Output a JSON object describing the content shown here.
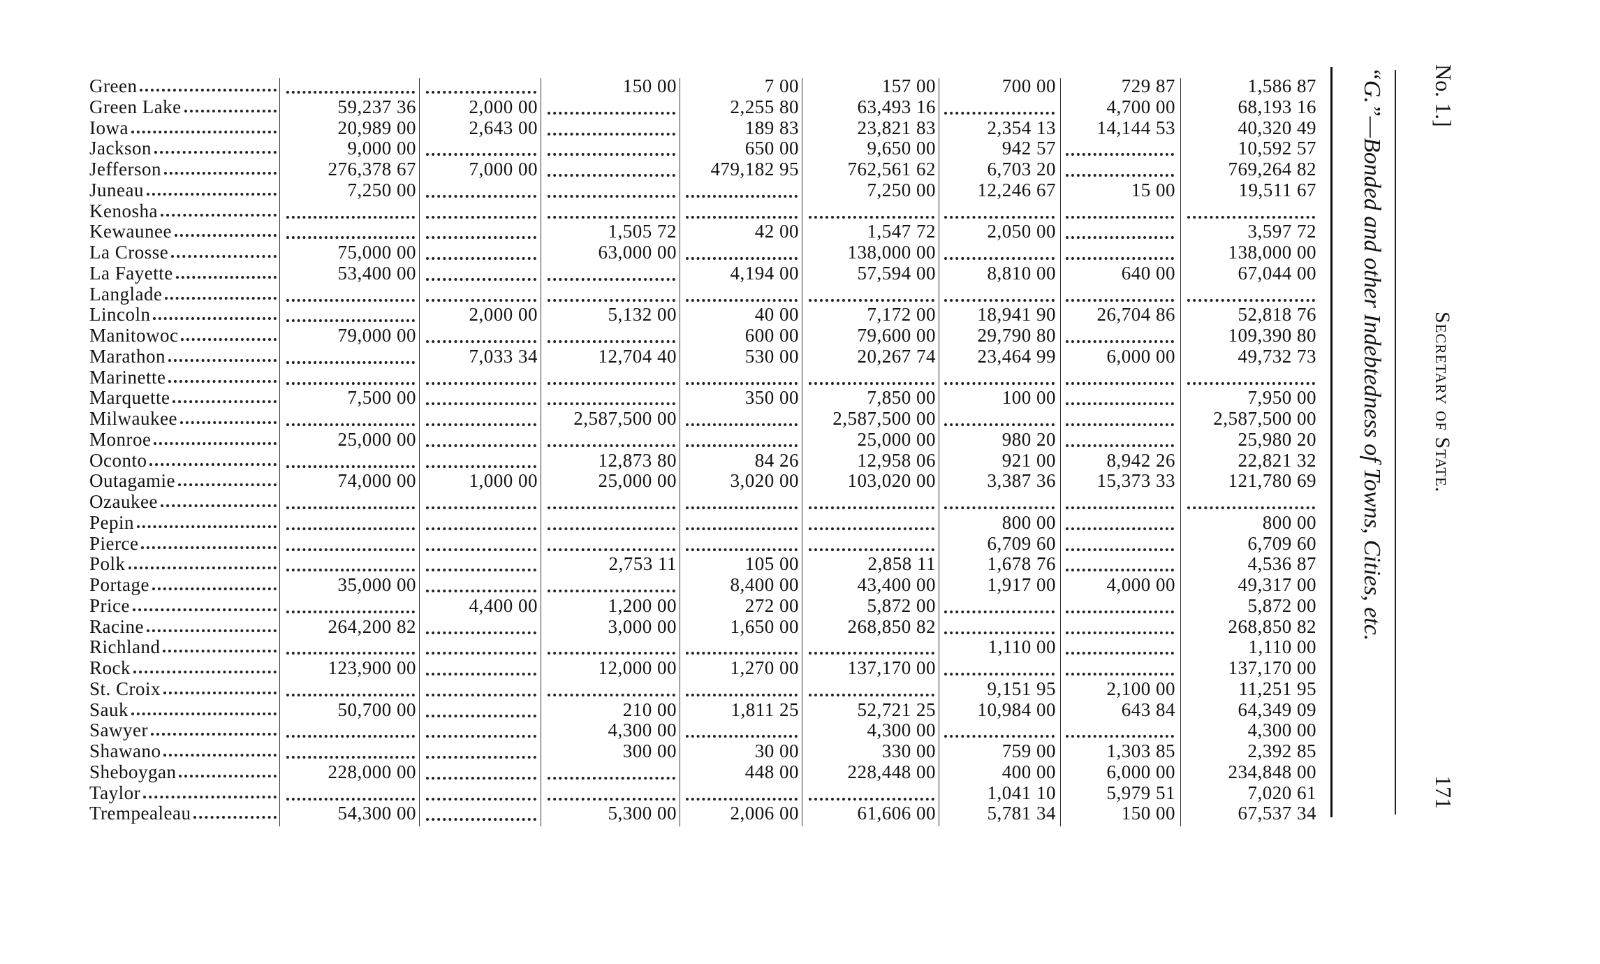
{
  "header": {
    "page_marker": "No. 1.]",
    "running_title": "Secretary of State.",
    "folio": "171",
    "table_title": "“G.”—Bonded and other Indebtedness of Towns, Cities, etc."
  },
  "rows": [
    {
      "name": "Green",
      "values": [
        "",
        "",
        "150 00",
        "7 00",
        "157 00",
        "700 00",
        "729 87",
        "1,586 87"
      ]
    },
    {
      "name": "Green Lake",
      "values": [
        "59,237 36",
        "2,000 00",
        "",
        "2,255 80",
        "63,493 16",
        "",
        "4,700 00",
        "68,193 16"
      ]
    },
    {
      "name": "Iowa",
      "values": [
        "20,989 00",
        "2,643 00",
        "",
        "189 83",
        "23,821 83",
        "2,354 13",
        "14,144 53",
        "40,320 49"
      ]
    },
    {
      "name": "Jackson",
      "values": [
        "9,000 00",
        "",
        "",
        "650 00",
        "9,650 00",
        "942 57",
        "",
        "10,592 57"
      ]
    },
    {
      "name": "Jefferson",
      "values": [
        "276,378 67",
        "7,000 00",
        "",
        "479,182 95",
        "762,561 62",
        "6,703 20",
        "",
        "769,264 82"
      ]
    },
    {
      "name": "Juneau",
      "values": [
        "7,250 00",
        "",
        "",
        "",
        "7,250 00",
        "12,246 67",
        "15 00",
        "19,511 67"
      ]
    },
    {
      "name": "Kenosha",
      "values": [
        "",
        "",
        "",
        "",
        "",
        "",
        "",
        ""
      ]
    },
    {
      "name": "Kewaunee",
      "values": [
        "",
        "",
        "1,505 72",
        "42 00",
        "1,547 72",
        "2,050 00",
        "",
        "3,597 72"
      ]
    },
    {
      "name": "La Crosse",
      "values": [
        "75,000 00",
        "",
        "63,000 00",
        "",
        "138,000 00",
        "",
        "",
        "138,000 00"
      ]
    },
    {
      "name": "La Fayette",
      "values": [
        "53,400 00",
        "",
        "",
        "4,194 00",
        "57,594 00",
        "8,810 00",
        "640 00",
        "67,044 00"
      ]
    },
    {
      "name": "Langlade",
      "values": [
        "",
        "",
        "",
        "",
        "",
        "",
        "",
        ""
      ]
    },
    {
      "name": "Lincoln",
      "values": [
        "",
        "2,000 00",
        "5,132 00",
        "40 00",
        "7,172 00",
        "18,941 90",
        "26,704 86",
        "52,818 76"
      ]
    },
    {
      "name": "Manitowoc",
      "values": [
        "79,000 00",
        "",
        "",
        "600 00",
        "79,600 00",
        "29,790 80",
        "",
        "109,390 80"
      ]
    },
    {
      "name": "Marathon",
      "values": [
        "",
        "7,033 34",
        "12,704 40",
        "530 00",
        "20,267 74",
        "23,464 99",
        "6,000 00",
        "49,732 73"
      ]
    },
    {
      "name": "Marinette",
      "values": [
        "",
        "",
        "",
        "",
        "",
        "",
        "",
        ""
      ]
    },
    {
      "name": "Marquette",
      "values": [
        "7,500 00",
        "",
        "",
        "350 00",
        "7,850 00",
        "100 00",
        "",
        "7,950 00"
      ]
    },
    {
      "name": "Milwaukee",
      "values": [
        "",
        "",
        "2,587,500 00",
        "",
        "2,587,500 00",
        "",
        "",
        "2,587,500 00"
      ]
    },
    {
      "name": "Monroe",
      "values": [
        "25,000 00",
        "",
        "",
        "",
        "25,000 00",
        "980 20",
        "",
        "25,980 20"
      ]
    },
    {
      "name": "Oconto",
      "values": [
        "",
        "",
        "12,873 80",
        "84 26",
        "12,958 06",
        "921 00",
        "8,942 26",
        "22,821 32"
      ]
    },
    {
      "name": "Outagamie",
      "values": [
        "74,000 00",
        "1,000 00",
        "25,000 00",
        "3,020 00",
        "103,020 00",
        "3,387 36",
        "15,373 33",
        "121,780 69"
      ]
    },
    {
      "name": "Ozaukee",
      "values": [
        "",
        "",
        "",
        "",
        "",
        "",
        "",
        ""
      ]
    },
    {
      "name": "Pepin",
      "values": [
        "",
        "",
        "",
        "",
        "",
        "800 00",
        "",
        "800 00"
      ]
    },
    {
      "name": "Pierce",
      "values": [
        "",
        "",
        "",
        "",
        "",
        "6,709 60",
        "",
        "6,709 60"
      ]
    },
    {
      "name": "Polk",
      "values": [
        "",
        "",
        "2,753 11",
        "105 00",
        "2,858 11",
        "1,678 76",
        "",
        "4,536 87"
      ]
    },
    {
      "name": "Portage",
      "values": [
        "35,000 00",
        "",
        "",
        "8,400 00",
        "43,400 00",
        "1,917 00",
        "4,000 00",
        "49,317 00"
      ]
    },
    {
      "name": "Price",
      "values": [
        "",
        "4,400 00",
        "1,200 00",
        "272 00",
        "5,872 00",
        "",
        "",
        "5,872 00"
      ]
    },
    {
      "name": "Racine",
      "values": [
        "264,200 82",
        "",
        "3,000 00",
        "1,650 00",
        "268,850 82",
        "",
        "",
        "268,850 82"
      ]
    },
    {
      "name": "Richland",
      "values": [
        "",
        "",
        "",
        "",
        "",
        "1,110 00",
        "",
        "1,110 00"
      ]
    },
    {
      "name": "Rock",
      "values": [
        "123,900 00",
        "",
        "12,000 00",
        "1,270 00",
        "137,170 00",
        "",
        "",
        "137,170 00"
      ]
    },
    {
      "name": "St. Croix",
      "values": [
        "",
        "",
        "",
        "",
        "",
        "9,151 95",
        "2,100 00",
        "11,251 95"
      ]
    },
    {
      "name": "Sauk",
      "values": [
        "50,700 00",
        "",
        "210 00",
        "1,811 25",
        "52,721 25",
        "10,984 00",
        "643 84",
        "64,349 09"
      ]
    },
    {
      "name": "Sawyer",
      "values": [
        "",
        "",
        "4,300 00",
        "",
        "4,300 00",
        "",
        "",
        "4,300 00"
      ]
    },
    {
      "name": "Shawano",
      "values": [
        "",
        "",
        "300 00",
        "30 00",
        "330 00",
        "759 00",
        "1,303 85",
        "2,392 85"
      ]
    },
    {
      "name": "Sheboygan",
      "values": [
        "228,000 00",
        "",
        "",
        "448 00",
        "228,448 00",
        "400 00",
        "6,000 00",
        "234,848 00"
      ]
    },
    {
      "name": "Taylor",
      "values": [
        "",
        "",
        "",
        "",
        "",
        "1,041 10",
        "5,979 51",
        "7,020 61"
      ]
    },
    {
      "name": "Trempealeau",
      "values": [
        "54,300 00",
        "",
        "5,300 00",
        "2,006 00",
        "61,606 00",
        "5,781 34",
        "150 00",
        "67,537 34"
      ]
    }
  ]
}
